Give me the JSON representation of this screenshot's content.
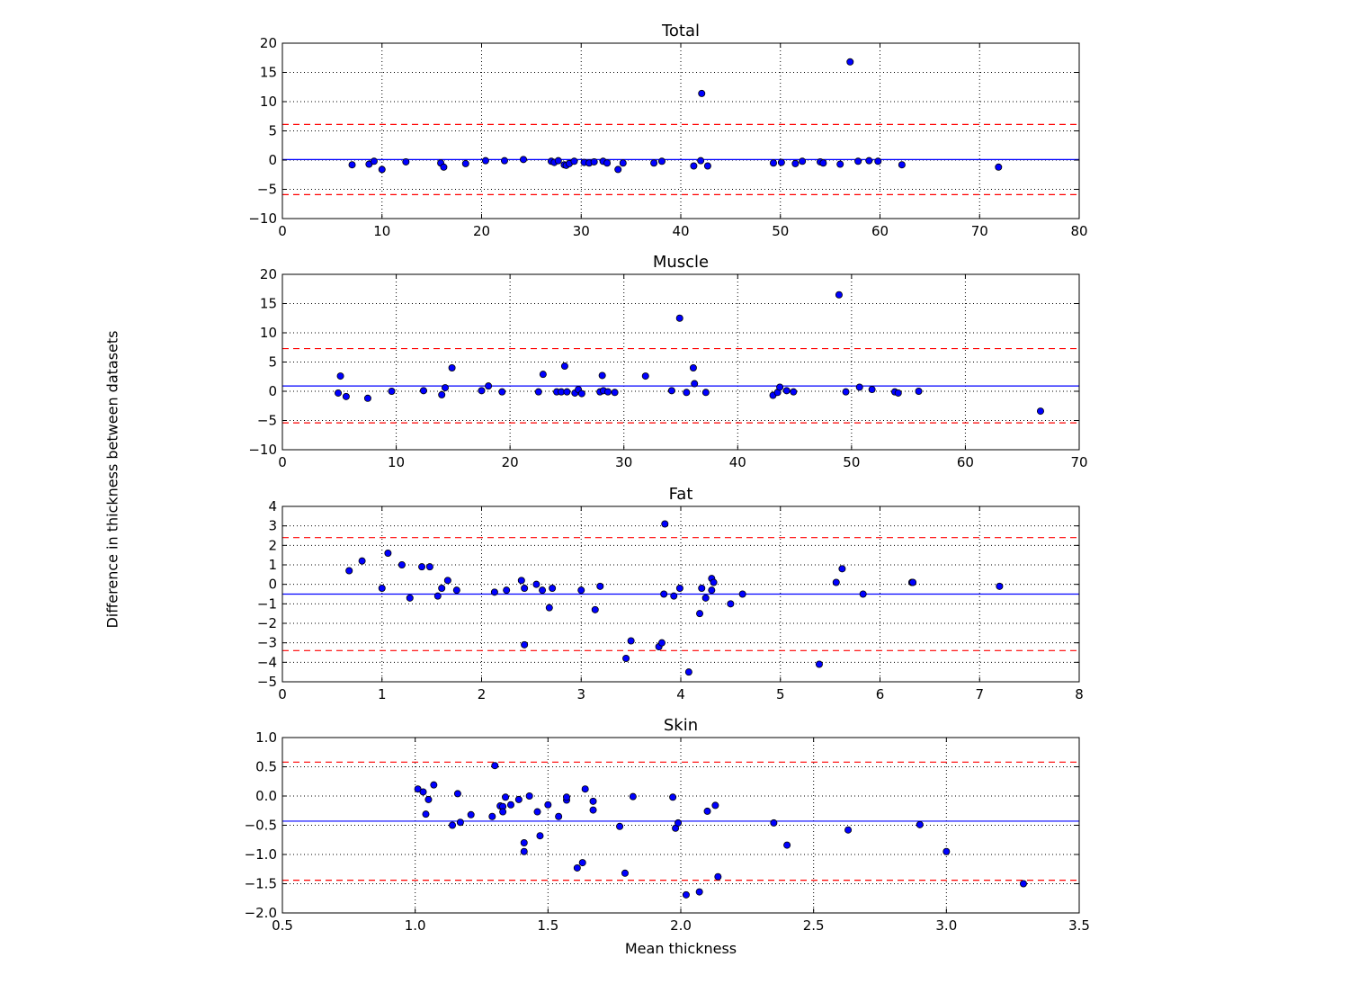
{
  "figure": {
    "ylabel": "Difference in thickness between datasets",
    "xlabel": "Mean thickness",
    "colors": {
      "points": "#0000ff",
      "mean_line": "#0000ff",
      "limit_lines": "#ff0000",
      "grid": "#000000"
    }
  },
  "chart_data": [
    {
      "type": "scatter",
      "title": "Total",
      "xlim": [
        0,
        80
      ],
      "ylim": [
        -10,
        20
      ],
      "xticks": [
        0,
        10,
        20,
        30,
        40,
        50,
        60,
        70,
        80
      ],
      "yticks": [
        -10,
        -5,
        0,
        5,
        10,
        15,
        20
      ],
      "tick_decimals": 0,
      "grid": true,
      "mean_line": 0.1,
      "limit_lines": [
        6.1,
        -5.9
      ],
      "points": [
        [
          7,
          -0.8
        ],
        [
          8.7,
          -0.7
        ],
        [
          9.2,
          -0.2
        ],
        [
          10,
          -1.6
        ],
        [
          12.4,
          -0.3
        ],
        [
          15.9,
          -0.5
        ],
        [
          16.2,
          -1.2
        ],
        [
          18.4,
          -0.6
        ],
        [
          20.4,
          -0.1
        ],
        [
          22.3,
          -0.1
        ],
        [
          24.2,
          0.1
        ],
        [
          27,
          -0.2
        ],
        [
          27.3,
          -0.4
        ],
        [
          27.7,
          -0.1
        ],
        [
          28.3,
          -0.8
        ],
        [
          28.5,
          -0.9
        ],
        [
          28.8,
          -0.6
        ],
        [
          29.3,
          -0.2
        ],
        [
          30.3,
          -0.4
        ],
        [
          30.8,
          -0.5
        ],
        [
          31.3,
          -0.3
        ],
        [
          32.2,
          -0.2
        ],
        [
          32.6,
          -0.5
        ],
        [
          33.7,
          -1.6
        ],
        [
          34.2,
          -0.5
        ],
        [
          37.3,
          -0.5
        ],
        [
          38.1,
          -0.2
        ],
        [
          41.3,
          -1
        ],
        [
          42,
          -0.1
        ],
        [
          42.7,
          -1
        ],
        [
          42.1,
          11.4
        ],
        [
          49.3,
          -0.5
        ],
        [
          50.1,
          -0.4
        ],
        [
          51.5,
          -0.6
        ],
        [
          52.2,
          -0.2
        ],
        [
          54,
          -0.3
        ],
        [
          54.3,
          -0.5
        ],
        [
          56,
          -0.7
        ],
        [
          57,
          16.8
        ],
        [
          57.8,
          -0.2
        ],
        [
          58.9,
          -0.1
        ],
        [
          59.8,
          -0.2
        ],
        [
          62.2,
          -0.8
        ],
        [
          71.9,
          -1.2
        ]
      ]
    },
    {
      "type": "scatter",
      "title": "Muscle",
      "xlim": [
        0,
        70
      ],
      "ylim": [
        -10,
        20
      ],
      "xticks": [
        0,
        10,
        20,
        30,
        40,
        50,
        60,
        70
      ],
      "yticks": [
        -10,
        -5,
        0,
        5,
        10,
        15,
        20
      ],
      "tick_decimals": 0,
      "grid": true,
      "mean_line": 0.9,
      "limit_lines": [
        7.3,
        -5.4
      ],
      "points": [
        [
          4.9,
          -0.3
        ],
        [
          5.1,
          2.6
        ],
        [
          5.6,
          -0.9
        ],
        [
          7.5,
          -1.2
        ],
        [
          9.6,
          0
        ],
        [
          12.4,
          0.1
        ],
        [
          14,
          -0.6
        ],
        [
          14.3,
          0.6
        ],
        [
          14.9,
          4
        ],
        [
          17.5,
          0.1
        ],
        [
          18.1,
          0.9
        ],
        [
          19.3,
          -0.1
        ],
        [
          22.5,
          -0.1
        ],
        [
          22.9,
          2.9
        ],
        [
          24.1,
          -0.1
        ],
        [
          24.5,
          -0.1
        ],
        [
          24.8,
          4.3
        ],
        [
          25,
          -0.1
        ],
        [
          25.7,
          -0.3
        ],
        [
          26,
          0.3
        ],
        [
          26.3,
          -0.4
        ],
        [
          27.9,
          -0.1
        ],
        [
          28.1,
          2.7
        ],
        [
          28.2,
          0.1
        ],
        [
          28.6,
          -0.1
        ],
        [
          29.2,
          -0.2
        ],
        [
          31.9,
          2.6
        ],
        [
          34.2,
          0.1
        ],
        [
          34.9,
          12.5
        ],
        [
          35.5,
          -0.2
        ],
        [
          36.1,
          4
        ],
        [
          36.2,
          1.3
        ],
        [
          37.2,
          -0.2
        ],
        [
          43.1,
          -0.7
        ],
        [
          43.5,
          -0.2
        ],
        [
          43.7,
          0.7
        ],
        [
          44.3,
          0.1
        ],
        [
          44.9,
          -0.1
        ],
        [
          48.9,
          16.5
        ],
        [
          49.5,
          -0.1
        ],
        [
          50.7,
          0.7
        ],
        [
          51.8,
          0.3
        ],
        [
          53.8,
          -0.1
        ],
        [
          54.1,
          -0.3
        ],
        [
          55.9,
          0
        ],
        [
          66.6,
          -3.4
        ]
      ]
    },
    {
      "type": "scatter",
      "title": "Fat",
      "xlim": [
        0,
        8
      ],
      "ylim": [
        -5,
        4
      ],
      "xticks": [
        0,
        1,
        2,
        3,
        4,
        5,
        6,
        7,
        8
      ],
      "yticks": [
        -5,
        -4,
        -3,
        -2,
        -1,
        0,
        1,
        2,
        3,
        4
      ],
      "tick_decimals": 0,
      "grid": true,
      "mean_line": -0.5,
      "limit_lines": [
        2.4,
        -3.4
      ],
      "points": [
        [
          0.67,
          0.7
        ],
        [
          0.8,
          1.2
        ],
        [
          1.0,
          -0.2
        ],
        [
          1.06,
          1.6
        ],
        [
          1.2,
          1.0
        ],
        [
          1.28,
          -0.7
        ],
        [
          1.4,
          0.9
        ],
        [
          1.48,
          0.9
        ],
        [
          1.56,
          -0.6
        ],
        [
          1.6,
          -0.2
        ],
        [
          1.66,
          0.2
        ],
        [
          1.75,
          -0.3
        ],
        [
          2.13,
          -0.4
        ],
        [
          2.25,
          -0.3
        ],
        [
          2.4,
          0.2
        ],
        [
          2.43,
          -0.2
        ],
        [
          2.43,
          -3.1
        ],
        [
          2.55,
          0
        ],
        [
          2.61,
          -0.3
        ],
        [
          2.68,
          -1.2
        ],
        [
          2.71,
          -0.2
        ],
        [
          3.0,
          -0.3
        ],
        [
          3.14,
          -1.3
        ],
        [
          3.19,
          -0.1
        ],
        [
          3.45,
          -3.8
        ],
        [
          3.5,
          -2.9
        ],
        [
          3.78,
          -3.2
        ],
        [
          3.81,
          -3.0
        ],
        [
          3.83,
          -0.5
        ],
        [
          3.84,
          3.1
        ],
        [
          3.93,
          -0.6
        ],
        [
          3.99,
          -0.2
        ],
        [
          4.08,
          -4.5
        ],
        [
          4.19,
          -1.5
        ],
        [
          4.21,
          -0.2
        ],
        [
          4.25,
          -0.7
        ],
        [
          4.31,
          0.3
        ],
        [
          4.31,
          -0.3
        ],
        [
          4.33,
          0.1
        ],
        [
          4.5,
          -1.0
        ],
        [
          4.62,
          -0.5
        ],
        [
          5.39,
          -4.1
        ],
        [
          5.56,
          0.1
        ],
        [
          5.62,
          0.8
        ],
        [
          5.83,
          -0.5
        ],
        [
          6.32,
          0.1
        ],
        [
          6.33,
          0.1
        ],
        [
          7.2,
          -0.1
        ]
      ]
    },
    {
      "type": "scatter",
      "title": "Skin",
      "xlim": [
        0.5,
        3.5
      ],
      "ylim": [
        -2,
        1
      ],
      "xticks": [
        0.5,
        1.0,
        1.5,
        2.0,
        2.5,
        3.0,
        3.5
      ],
      "yticks": [
        -2.0,
        -1.5,
        -1.0,
        -0.5,
        0.0,
        0.5,
        1.0
      ],
      "tick_decimals": 1,
      "grid": true,
      "mean_line": -0.43,
      "limit_lines": [
        0.58,
        -1.44
      ],
      "points": [
        [
          1.01,
          0.12
        ],
        [
          1.03,
          0.07
        ],
        [
          1.04,
          -0.31
        ],
        [
          1.05,
          -0.06
        ],
        [
          1.07,
          0.19
        ],
        [
          1.14,
          -0.5
        ],
        [
          1.16,
          0.04
        ],
        [
          1.17,
          -0.45
        ],
        [
          1.21,
          -0.32
        ],
        [
          1.29,
          -0.35
        ],
        [
          1.3,
          0.52
        ],
        [
          1.32,
          -0.17
        ],
        [
          1.33,
          -0.18
        ],
        [
          1.33,
          -0.27
        ],
        [
          1.34,
          -0.02
        ],
        [
          1.36,
          -0.15
        ],
        [
          1.39,
          -0.06
        ],
        [
          1.41,
          -0.95
        ],
        [
          1.41,
          -0.8
        ],
        [
          1.43,
          0
        ],
        [
          1.46,
          -0.27
        ],
        [
          1.47,
          -0.68
        ],
        [
          1.5,
          -0.15
        ],
        [
          1.54,
          -0.35
        ],
        [
          1.57,
          -0.07
        ],
        [
          1.57,
          -0.02
        ],
        [
          1.61,
          -1.23
        ],
        [
          1.63,
          -1.14
        ],
        [
          1.64,
          0.12
        ],
        [
          1.67,
          -0.09
        ],
        [
          1.67,
          -0.24
        ],
        [
          1.77,
          -0.52
        ],
        [
          1.79,
          -1.32
        ],
        [
          1.82,
          -0.01
        ],
        [
          1.97,
          -0.02
        ],
        [
          1.98,
          -0.55
        ],
        [
          1.99,
          -0.46
        ],
        [
          2.02,
          -1.69
        ],
        [
          2.07,
          -1.64
        ],
        [
          2.1,
          -0.26
        ],
        [
          2.13,
          -0.16
        ],
        [
          2.14,
          -1.38
        ],
        [
          2.35,
          -0.46
        ],
        [
          2.4,
          -0.84
        ],
        [
          2.63,
          -0.58
        ],
        [
          2.9,
          -0.49
        ],
        [
          3.0,
          -0.95
        ],
        [
          3.29,
          -1.5
        ]
      ]
    }
  ]
}
